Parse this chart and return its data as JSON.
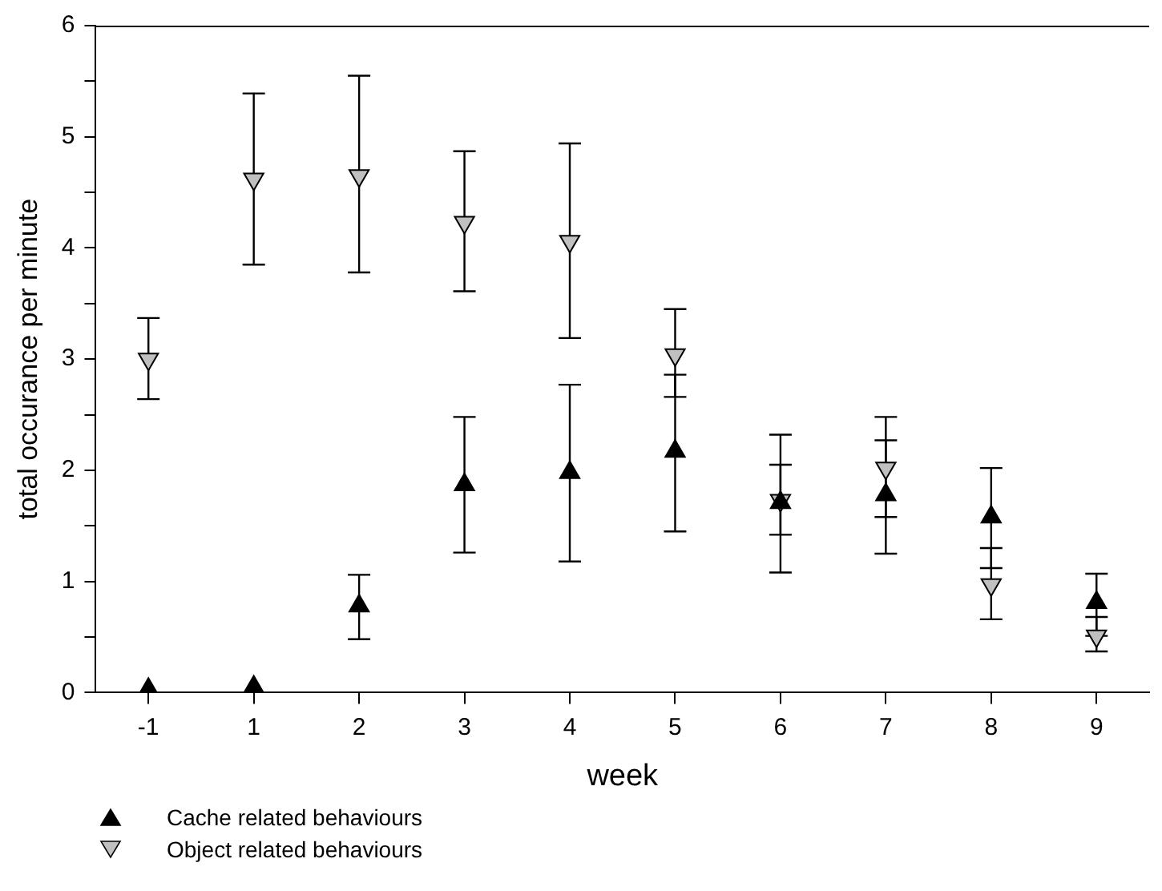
{
  "chart_data": {
    "type": "scatter",
    "xlabel": "week",
    "ylabel": "total occurance per minute",
    "categories": [
      "-1",
      "1",
      "2",
      "3",
      "4",
      "5",
      "6",
      "7",
      "8",
      "9"
    ],
    "series": [
      {
        "name": "Cache related behaviours",
        "color": "#000000",
        "marker": "triangle",
        "values": [
          0.03,
          0.05,
          0.78,
          1.87,
          1.98,
          2.17,
          1.71,
          1.78,
          1.58,
          0.81
        ],
        "errors": [
          null,
          null,
          [
            0.48,
            1.06
          ],
          [
            1.26,
            2.48
          ],
          [
            1.18,
            2.77
          ],
          [
            1.45,
            2.86
          ],
          [
            1.08,
            2.32
          ],
          [
            1.25,
            2.27
          ],
          [
            1.12,
            2.02
          ],
          [
            0.51,
            1.07
          ]
        ]
      },
      {
        "name": "Object related behaviours",
        "color": "#c0c0c0",
        "marker": "triangle-down",
        "values": [
          3.0,
          4.62,
          4.65,
          4.23,
          4.06,
          3.04,
          1.73,
          2.02,
          0.97,
          0.51
        ],
        "errors": [
          [
            2.64,
            3.37
          ],
          [
            3.85,
            5.39
          ],
          [
            3.78,
            5.55
          ],
          [
            3.61,
            4.87
          ],
          [
            3.19,
            4.94
          ],
          [
            2.66,
            3.45
          ],
          [
            1.42,
            2.05
          ],
          [
            1.58,
            2.48
          ],
          [
            0.66,
            1.3
          ],
          [
            0.37,
            0.68
          ]
        ]
      }
    ],
    "ylim": [
      0,
      6
    ],
    "yticks": [
      0,
      {
        "value": 0.5,
        "label": null
      },
      1,
      {
        "value": 1.5,
        "label": null
      },
      2,
      {
        "value": 2.5,
        "label": null
      },
      3,
      {
        "value": 3.5,
        "label": null
      },
      4,
      {
        "value": 4.5,
        "label": null
      },
      5,
      {
        "value": 5.5,
        "label": null
      },
      6
    ],
    "grid": false,
    "legend": "bottom left"
  }
}
